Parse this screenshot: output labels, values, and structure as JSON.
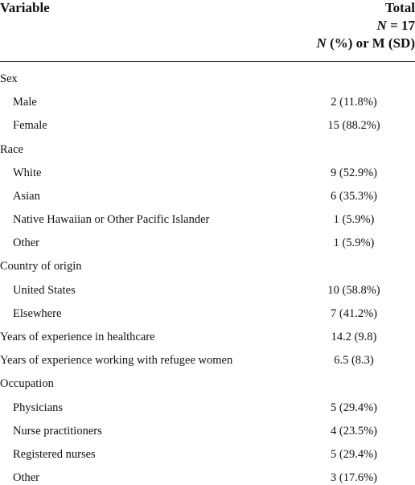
{
  "header": {
    "variable": "Variable",
    "total_lines": [
      [
        {
          "text": "Total"
        }
      ],
      [
        {
          "text": "N",
          "italic": true
        },
        {
          "text": " = 17"
        }
      ],
      [
        {
          "text": "N",
          "italic": true
        },
        {
          "text": " (%) or M (SD)"
        }
      ]
    ]
  },
  "table": {
    "sections": [
      {
        "label": "Sex",
        "items": [
          {
            "label": "Male",
            "value": "2 (11.8%)"
          },
          {
            "label": "Female",
            "value": "15 (88.2%)"
          }
        ]
      },
      {
        "label": "Race",
        "items": [
          {
            "label": "White",
            "value": "9 (52.9%)"
          },
          {
            "label": "Asian",
            "value": "6 (35.3%)"
          },
          {
            "label": "Native Hawaiian or Other Pacific Islander",
            "value": "1 (5.9%)"
          },
          {
            "label": "Other",
            "value": "1 (5.9%)"
          }
        ]
      },
      {
        "label": "Country of origin",
        "items": [
          {
            "label": "United States",
            "value": "10 (58.8%)"
          },
          {
            "label": "Elsewhere",
            "value": "7 (41.2%)"
          }
        ]
      },
      {
        "label": "Years of experience in healthcare",
        "value": "14.2 (9.8)"
      },
      {
        "label": "Years of experience working with refugee women",
        "value": "6.5 (8.3)"
      },
      {
        "label": "Occupation",
        "items": [
          {
            "label": "Physicians",
            "value": "5 (29.4%)"
          },
          {
            "label": "Nurse practitioners",
            "value": "4 (23.5%)"
          },
          {
            "label": "Registered nurses",
            "value": "5 (29.4%)"
          },
          {
            "label": "Other",
            "value": "3 (17.6%)"
          }
        ]
      }
    ]
  }
}
